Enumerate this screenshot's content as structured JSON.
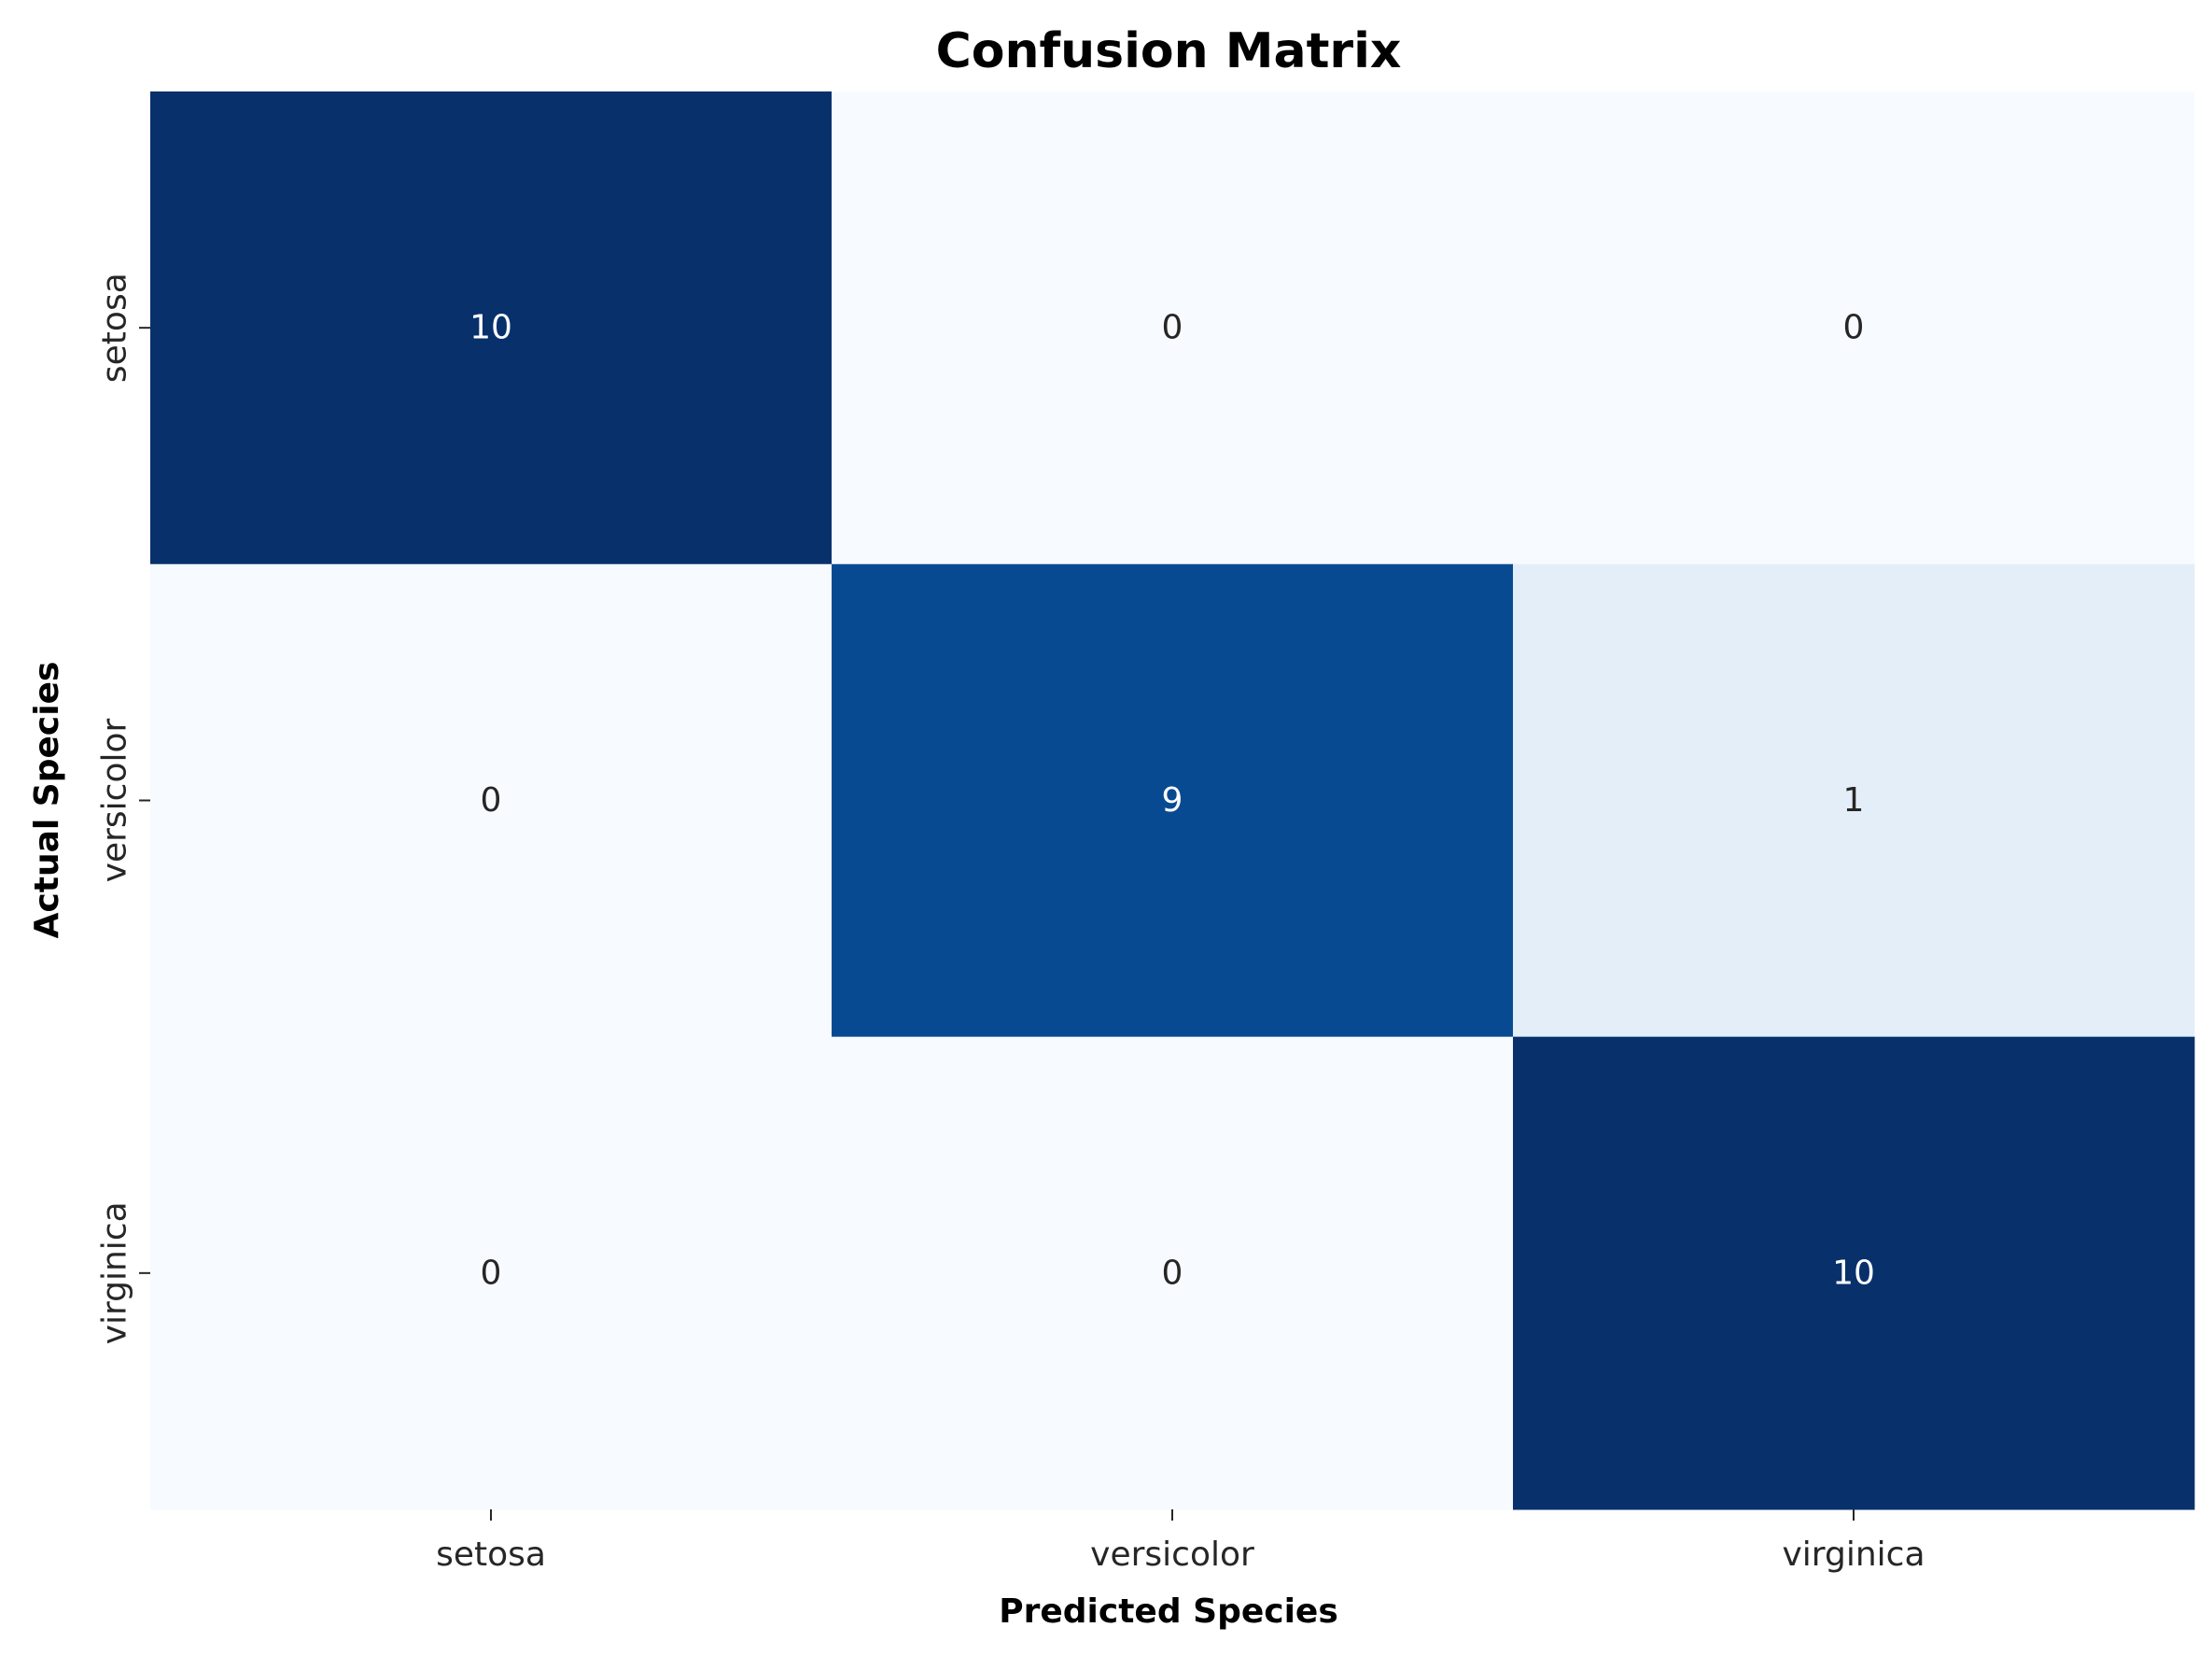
{
  "chart_data": {
    "type": "heatmap",
    "title": "Confusion Matrix",
    "xlabel": "Predicted Species",
    "ylabel": "Actual Species",
    "x_categories": [
      "setosa",
      "versicolor",
      "virginica"
    ],
    "y_categories": [
      "setosa",
      "versicolor",
      "virginica"
    ],
    "values": [
      [
        10,
        0,
        0
      ],
      [
        0,
        9,
        1
      ],
      [
        0,
        0,
        10
      ]
    ],
    "colormap": "Blues",
    "value_range": [
      0,
      10
    ],
    "colors": {
      "low": "#f7fbff",
      "high": "#08306b",
      "annotation_dark": "#262626",
      "annotation_light": "#ffffff"
    },
    "grid": false,
    "colorbar": false
  }
}
